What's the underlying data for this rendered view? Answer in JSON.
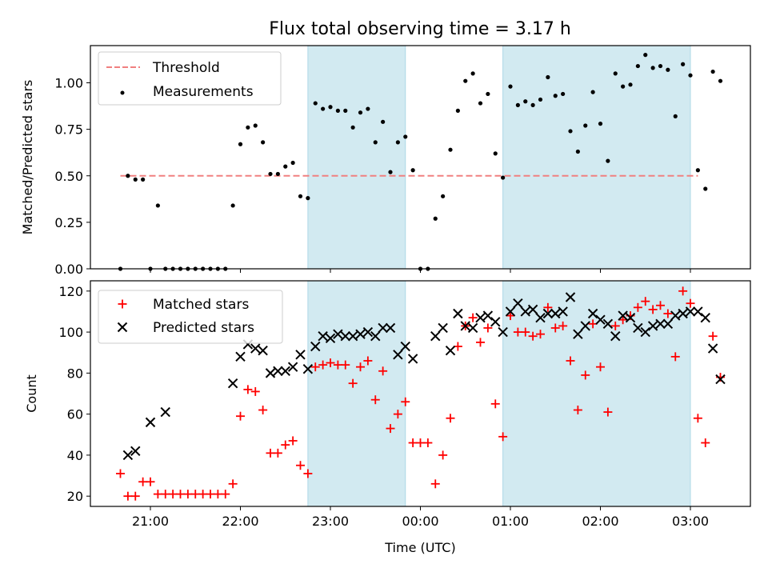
{
  "chart_data": {
    "title": "Flux total observing time = 3.17 h",
    "colors": {
      "threshold": "#f08080",
      "shade": "#add8e6",
      "matched": "#ff0000",
      "predicted": "#000000",
      "measurement": "#000000"
    },
    "x_axis": {
      "label": "Time (UTC)",
      "range": [
        "20:20",
        "03:40"
      ],
      "tick_labels": [
        "21:00",
        "22:00",
        "23:00",
        "00:00",
        "01:00",
        "02:00",
        "03:00"
      ]
    },
    "observing_windows": [
      [
        "22:45",
        "23:50"
      ],
      [
        "00:55",
        "03:00"
      ]
    ],
    "panels": [
      {
        "type": "scatter",
        "ylabel": "Matched/Predicted stars",
        "ylim": [
          0,
          1.2
        ],
        "yticks": [
          "0.00",
          "0.25",
          "0.50",
          "0.75",
          "1.00"
        ],
        "grid": false,
        "legend": "top-left",
        "threshold": {
          "name": "Threshold",
          "y": 0.5,
          "x": [
            "20:40",
            "03:05"
          ]
        },
        "series": [
          {
            "name": "Measurements",
            "points": [
              [
                "20:40",
                0.0
              ],
              [
                "20:45",
                0.5
              ],
              [
                "20:50",
                0.48
              ],
              [
                "20:55",
                0.48
              ],
              [
                "21:00",
                0.0
              ],
              [
                "21:05",
                0.34
              ],
              [
                "21:10",
                0.0
              ],
              [
                "21:15",
                0.0
              ],
              [
                "21:20",
                0.0
              ],
              [
                "21:25",
                0.0
              ],
              [
                "21:30",
                0.0
              ],
              [
                "21:35",
                0.0
              ],
              [
                "21:40",
                0.0
              ],
              [
                "21:45",
                0.0
              ],
              [
                "21:50",
                0.0
              ],
              [
                "21:55",
                0.34
              ],
              [
                "22:00",
                0.67
              ],
              [
                "22:05",
                0.76
              ],
              [
                "22:10",
                0.77
              ],
              [
                "22:15",
                0.68
              ],
              [
                "22:20",
                0.51
              ],
              [
                "22:25",
                0.51
              ],
              [
                "22:30",
                0.55
              ],
              [
                "22:35",
                0.57
              ],
              [
                "22:40",
                0.39
              ],
              [
                "22:45",
                0.38
              ],
              [
                "22:50",
                0.89
              ],
              [
                "22:55",
                0.86
              ],
              [
                "23:00",
                0.87
              ],
              [
                "23:05",
                0.85
              ],
              [
                "23:10",
                0.85
              ],
              [
                "23:15",
                0.76
              ],
              [
                "23:20",
                0.84
              ],
              [
                "23:25",
                0.86
              ],
              [
                "23:30",
                0.68
              ],
              [
                "23:35",
                0.79
              ],
              [
                "23:40",
                0.52
              ],
              [
                "23:45",
                0.68
              ],
              [
                "23:50",
                0.71
              ],
              [
                "23:55",
                0.53
              ],
              [
                "00:00",
                0.0
              ],
              [
                "00:05",
                0.0
              ],
              [
                "00:10",
                0.27
              ],
              [
                "00:15",
                0.39
              ],
              [
                "00:20",
                0.64
              ],
              [
                "00:25",
                0.85
              ],
              [
                "00:30",
                1.01
              ],
              [
                "00:35",
                1.05
              ],
              [
                "00:40",
                0.89
              ],
              [
                "00:45",
                0.94
              ],
              [
                "00:50",
                0.62
              ],
              [
                "00:55",
                0.49
              ],
              [
                "01:00",
                0.98
              ],
              [
                "01:05",
                0.88
              ],
              [
                "01:10",
                0.9
              ],
              [
                "01:15",
                0.88
              ],
              [
                "01:20",
                0.91
              ],
              [
                "01:25",
                1.03
              ],
              [
                "01:30",
                0.93
              ],
              [
                "01:35",
                0.94
              ],
              [
                "01:40",
                0.74
              ],
              [
                "01:45",
                0.63
              ],
              [
                "01:50",
                0.77
              ],
              [
                "01:55",
                0.95
              ],
              [
                "02:00",
                0.78
              ],
              [
                "02:05",
                0.58
              ],
              [
                "02:10",
                1.05
              ],
              [
                "02:15",
                0.98
              ],
              [
                "02:20",
                0.99
              ],
              [
                "02:25",
                1.09
              ],
              [
                "02:30",
                1.15
              ],
              [
                "02:35",
                1.08
              ],
              [
                "02:40",
                1.09
              ],
              [
                "02:45",
                1.07
              ],
              [
                "02:50",
                0.82
              ],
              [
                "02:55",
                1.1
              ],
              [
                "03:00",
                1.04
              ],
              [
                "03:05",
                0.53
              ],
              [
                "03:10",
                0.43
              ],
              [
                "03:15",
                1.06
              ],
              [
                "03:20",
                1.01
              ]
            ]
          }
        ]
      },
      {
        "type": "scatter",
        "ylabel": "Count",
        "ylim": [
          15,
          125
        ],
        "yticks": [
          "20",
          "40",
          "60",
          "80",
          "100",
          "120"
        ],
        "grid": false,
        "legend": "top-left",
        "series": [
          {
            "name": "Matched stars",
            "marker": "+",
            "points": [
              [
                "20:40",
                31
              ],
              [
                "20:45",
                20
              ],
              [
                "20:50",
                20
              ],
              [
                "20:55",
                27
              ],
              [
                "21:00",
                27
              ],
              [
                "21:05",
                21
              ],
              [
                "21:10",
                21
              ],
              [
                "21:15",
                21
              ],
              [
                "21:20",
                21
              ],
              [
                "21:25",
                21
              ],
              [
                "21:30",
                21
              ],
              [
                "21:35",
                21
              ],
              [
                "21:40",
                21
              ],
              [
                "21:45",
                21
              ],
              [
                "21:50",
                21
              ],
              [
                "21:55",
                26
              ],
              [
                "22:00",
                59
              ],
              [
                "22:05",
                72
              ],
              [
                "22:10",
                71
              ],
              [
                "22:15",
                62
              ],
              [
                "22:20",
                41
              ],
              [
                "22:25",
                41
              ],
              [
                "22:30",
                45
              ],
              [
                "22:35",
                47
              ],
              [
                "22:40",
                35
              ],
              [
                "22:45",
                31
              ],
              [
                "22:50",
                83
              ],
              [
                "22:55",
                84
              ],
              [
                "23:00",
                85
              ],
              [
                "23:05",
                84
              ],
              [
                "23:10",
                84
              ],
              [
                "23:15",
                75
              ],
              [
                "23:20",
                83
              ],
              [
                "23:25",
                86
              ],
              [
                "23:30",
                67
              ],
              [
                "23:35",
                81
              ],
              [
                "23:40",
                53
              ],
              [
                "23:45",
                60
              ],
              [
                "23:50",
                66
              ],
              [
                "23:55",
                46
              ],
              [
                "00:00",
                46
              ],
              [
                "00:05",
                46
              ],
              [
                "00:10",
                26
              ],
              [
                "00:15",
                40
              ],
              [
                "00:20",
                58
              ],
              [
                "00:25",
                93
              ],
              [
                "00:30",
                103
              ],
              [
                "00:35",
                107
              ],
              [
                "00:40",
                95
              ],
              [
                "00:45",
                102
              ],
              [
                "00:50",
                65
              ],
              [
                "00:55",
                49
              ],
              [
                "01:00",
                108
              ],
              [
                "01:05",
                100
              ],
              [
                "01:10",
                100
              ],
              [
                "01:15",
                98
              ],
              [
                "01:20",
                99
              ],
              [
                "01:25",
                112
              ],
              [
                "01:30",
                102
              ],
              [
                "01:35",
                103
              ],
              [
                "01:40",
                86
              ],
              [
                "01:45",
                62
              ],
              [
                "01:50",
                79
              ],
              [
                "01:55",
                104
              ],
              [
                "02:00",
                83
              ],
              [
                "02:05",
                61
              ],
              [
                "02:10",
                103
              ],
              [
                "02:15",
                106
              ],
              [
                "02:20",
                108
              ],
              [
                "02:25",
                112
              ],
              [
                "02:30",
                115
              ],
              [
                "02:35",
                111
              ],
              [
                "02:40",
                113
              ],
              [
                "02:45",
                109
              ],
              [
                "02:50",
                88
              ],
              [
                "02:55",
                120
              ],
              [
                "03:00",
                114
              ],
              [
                "03:05",
                58
              ],
              [
                "03:10",
                46
              ],
              [
                "03:15",
                98
              ],
              [
                "03:20",
                78
              ]
            ]
          },
          {
            "name": "Predicted stars",
            "marker": "x",
            "points": [
              [
                "20:45",
                40
              ],
              [
                "20:50",
                42
              ],
              [
                "21:00",
                56
              ],
              [
                "21:10",
                61
              ],
              [
                "21:55",
                75
              ],
              [
                "22:00",
                88
              ],
              [
                "22:05",
                94
              ],
              [
                "22:10",
                92
              ],
              [
                "22:15",
                91
              ],
              [
                "22:20",
                80
              ],
              [
                "22:25",
                81
              ],
              [
                "22:30",
                81
              ],
              [
                "22:35",
                83
              ],
              [
                "22:40",
                89
              ],
              [
                "22:45",
                82
              ],
              [
                "22:50",
                93
              ],
              [
                "22:55",
                98
              ],
              [
                "23:00",
                97
              ],
              [
                "23:05",
                99
              ],
              [
                "23:10",
                98
              ],
              [
                "23:15",
                98
              ],
              [
                "23:20",
                99
              ],
              [
                "23:25",
                100
              ],
              [
                "23:30",
                98
              ],
              [
                "23:35",
                102
              ],
              [
                "23:40",
                102
              ],
              [
                "23:45",
                89
              ],
              [
                "23:50",
                93
              ],
              [
                "23:55",
                87
              ],
              [
                "00:10",
                98
              ],
              [
                "00:15",
                102
              ],
              [
                "00:20",
                91
              ],
              [
                "00:25",
                109
              ],
              [
                "00:30",
                103
              ],
              [
                "00:35",
                102
              ],
              [
                "00:40",
                107
              ],
              [
                "00:45",
                108
              ],
              [
                "00:50",
                105
              ],
              [
                "00:55",
                100
              ],
              [
                "01:00",
                110
              ],
              [
                "01:05",
                114
              ],
              [
                "01:10",
                110
              ],
              [
                "01:15",
                111
              ],
              [
                "01:20",
                107
              ],
              [
                "01:25",
                109
              ],
              [
                "01:30",
                109
              ],
              [
                "01:35",
                110
              ],
              [
                "01:40",
                117
              ],
              [
                "01:45",
                99
              ],
              [
                "01:50",
                103
              ],
              [
                "01:55",
                109
              ],
              [
                "02:00",
                106
              ],
              [
                "02:05",
                104
              ],
              [
                "02:10",
                98
              ],
              [
                "02:15",
                108
              ],
              [
                "02:20",
                107
              ],
              [
                "02:25",
                102
              ],
              [
                "02:30",
                100
              ],
              [
                "02:35",
                103
              ],
              [
                "02:40",
                104
              ],
              [
                "02:45",
                104
              ],
              [
                "02:50",
                108
              ],
              [
                "02:55",
                109
              ],
              [
                "03:00",
                110
              ],
              [
                "03:05",
                110
              ],
              [
                "03:10",
                107
              ],
              [
                "03:15",
                92
              ],
              [
                "03:20",
                77
              ]
            ]
          }
        ]
      }
    ]
  }
}
